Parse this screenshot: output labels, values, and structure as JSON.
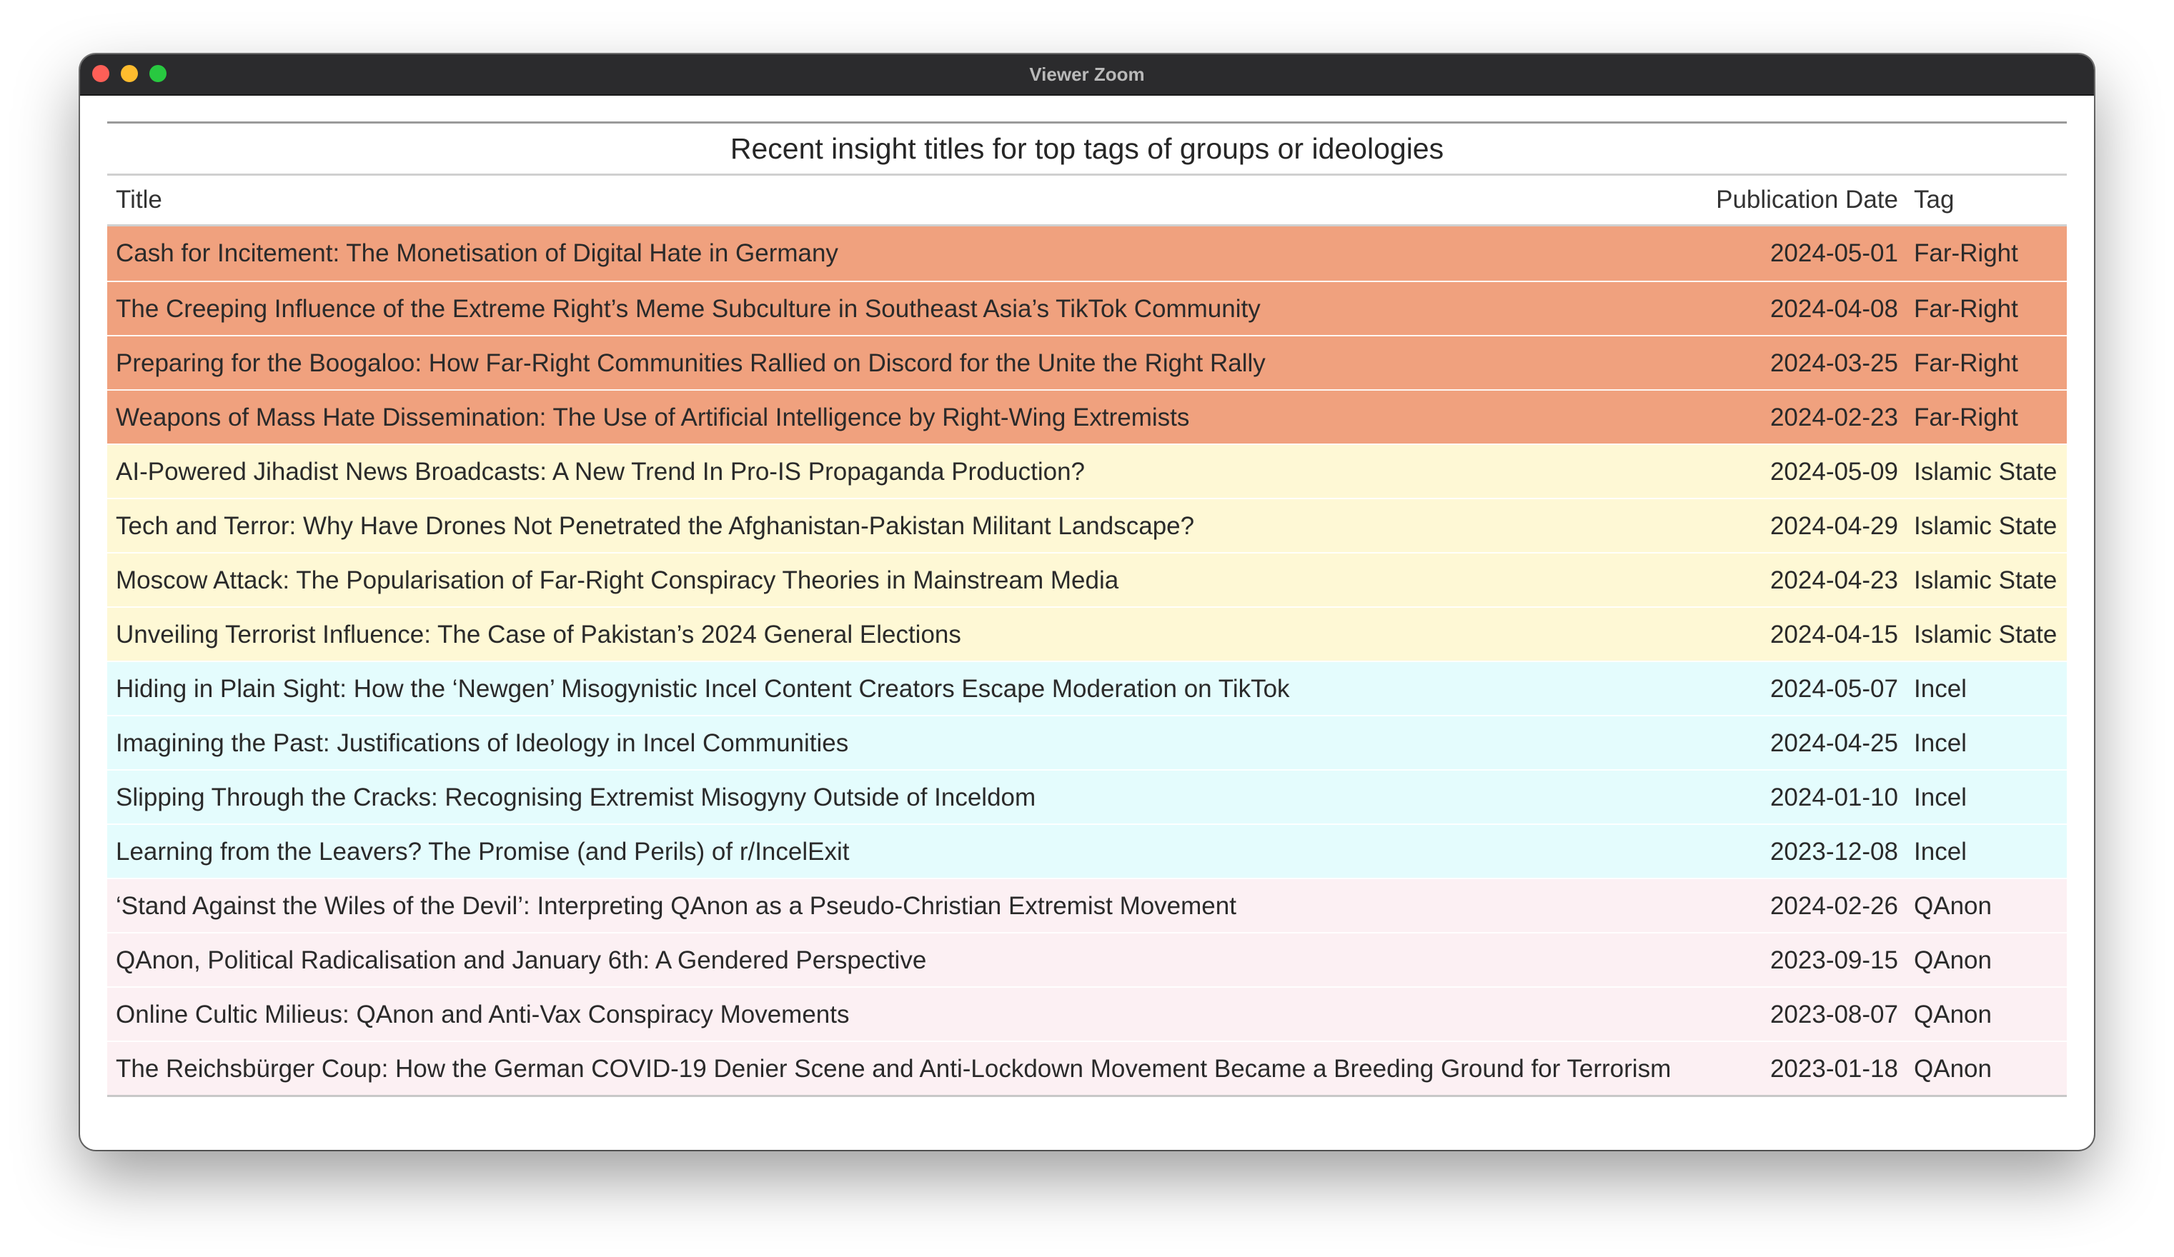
{
  "window": {
    "title": "Viewer Zoom"
  },
  "table": {
    "caption": "Recent insight titles for top tags of groups or ideologies",
    "columns": {
      "title": "Title",
      "date": "Publication Date",
      "tag": "Tag"
    },
    "tag_colors": {
      "Far-Right": "#f0a17e",
      "Islamic State": "#fef8d5",
      "Incel": "#e4fcfd",
      "QAnon": "#fcf0f3"
    },
    "rows": [
      {
        "title": "Cash for Incitement: The Monetisation of Digital Hate in Germany",
        "date": "2024-05-01",
        "tag": "Far-Right"
      },
      {
        "title": "The Creeping Influence of the Extreme Right’s Meme Subculture in Southeast Asia’s TikTok Community",
        "date": "2024-04-08",
        "tag": "Far-Right"
      },
      {
        "title": "Preparing for the Boogaloo: How Far-Right Communities Rallied on Discord for the Unite the Right Rally",
        "date": "2024-03-25",
        "tag": "Far-Right"
      },
      {
        "title": "Weapons of Mass Hate Dissemination: The Use of Artificial Intelligence by Right-Wing Extremists",
        "date": "2024-02-23",
        "tag": "Far-Right"
      },
      {
        "title": "AI-Powered Jihadist News Broadcasts: A New Trend In Pro-IS Propaganda Production?",
        "date": "2024-05-09",
        "tag": "Islamic State"
      },
      {
        "title": "Tech and Terror: Why Have Drones Not Penetrated the Afghanistan-Pakistan Militant Landscape?",
        "date": "2024-04-29",
        "tag": "Islamic State"
      },
      {
        "title": "Moscow Attack: The Popularisation of Far-Right Conspiracy Theories in Mainstream Media",
        "date": "2024-04-23",
        "tag": "Islamic State"
      },
      {
        "title": "Unveiling Terrorist Influence: The Case of Pakistan’s 2024 General Elections",
        "date": "2024-04-15",
        "tag": "Islamic State"
      },
      {
        "title": "Hiding in Plain Sight: How the ‘Newgen’ Misogynistic Incel Content Creators Escape Moderation on TikTok",
        "date": "2024-05-07",
        "tag": "Incel"
      },
      {
        "title": "Imagining the Past: Justifications of Ideology in Incel Communities",
        "date": "2024-04-25",
        "tag": "Incel"
      },
      {
        "title": "Slipping Through the Cracks: Recognising Extremist Misogyny Outside of Inceldom",
        "date": "2024-01-10",
        "tag": "Incel"
      },
      {
        "title": "Learning from the Leavers? The Promise (and Perils) of r/IncelExit",
        "date": "2023-12-08",
        "tag": "Incel"
      },
      {
        "title": "‘Stand Against the Wiles of the Devil’: Interpreting QAnon as a Pseudo-Christian Extremist Movement",
        "date": "2024-02-26",
        "tag": "QAnon"
      },
      {
        "title": "QAnon, Political Radicalisation and January 6th: A Gendered Perspective",
        "date": "2023-09-15",
        "tag": "QAnon"
      },
      {
        "title": "Online Cultic Milieus: QAnon and Anti-Vax Conspiracy Movements",
        "date": "2023-08-07",
        "tag": "QAnon"
      },
      {
        "title": "The Reichsbürger Coup: How the German COVID-19 Denier Scene and Anti-Lockdown Movement Became a Breeding Ground for Terrorism",
        "date": "2023-01-18",
        "tag": "QAnon"
      }
    ]
  }
}
